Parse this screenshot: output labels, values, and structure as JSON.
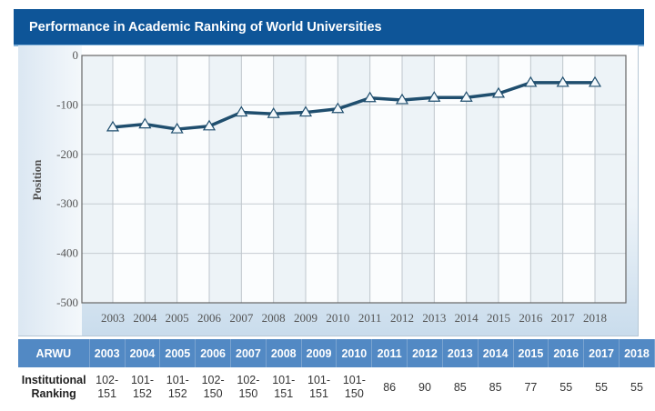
{
  "header": {
    "title": "Performance in Academic Ranking of World Universities"
  },
  "chart_data": {
    "type": "line",
    "title": "Performance in Academic Ranking of World Universities",
    "xlabel": "",
    "ylabel": "Position",
    "x": [
      "2003",
      "2004",
      "2005",
      "2006",
      "2007",
      "2008",
      "2009",
      "2010",
      "2011",
      "2012",
      "2013",
      "2014",
      "2015",
      "2016",
      "2017",
      "2018"
    ],
    "series": [
      {
        "name": "Position",
        "values": [
          -145,
          -139,
          -149,
          -143,
          -115,
          -118,
          -115,
          -108,
          -86,
          -90,
          -85,
          -85,
          -77,
          -55,
          -55,
          -55
        ]
      }
    ],
    "yticks": [
      "0",
      "-100",
      "-200",
      "-300",
      "-400",
      "-500"
    ],
    "ylim": [
      -500,
      0
    ],
    "grid": true,
    "marker": "triangle",
    "line_color": "#1f4e6e"
  },
  "table": {
    "header_label": "ARWU",
    "years": [
      "2003",
      "2004",
      "2005",
      "2006",
      "2007",
      "2008",
      "2009",
      "2010",
      "2011",
      "2012",
      "2013",
      "2014",
      "2015",
      "2016",
      "2017",
      "2018"
    ],
    "row_label_line1": "Institutional",
    "row_label_line2": "Ranking",
    "rankings": [
      [
        "102-",
        "151"
      ],
      [
        "101-",
        "152"
      ],
      [
        "101-",
        "152"
      ],
      [
        "102-",
        "150"
      ],
      [
        "102-",
        "150"
      ],
      [
        "101-",
        "151"
      ],
      [
        "101-",
        "151"
      ],
      [
        "101-",
        "150"
      ],
      [
        "86",
        ""
      ],
      [
        "90",
        ""
      ],
      [
        "85",
        ""
      ],
      [
        "85",
        ""
      ],
      [
        "77",
        ""
      ],
      [
        "55",
        ""
      ],
      [
        "55",
        ""
      ],
      [
        "55",
        ""
      ]
    ]
  }
}
